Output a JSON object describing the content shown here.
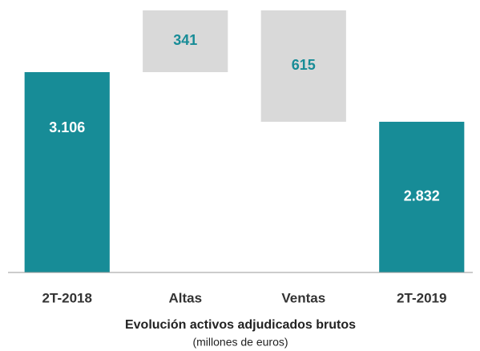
{
  "chart_data": {
    "type": "waterfall",
    "title": "Evolución  activos adjudicados brutos",
    "subtitle": "(millones de euros)",
    "categories": [
      "2T-2018",
      "Altas",
      "Ventas",
      "2T-2019"
    ],
    "measures": [
      "total",
      "increase",
      "decrease",
      "total"
    ],
    "values": [
      3106,
      341,
      615,
      2832
    ],
    "value_labels": [
      "3.106",
      "341",
      "615",
      "2.832"
    ],
    "total_color": "#178c97",
    "change_color": "#d9d9d9",
    "ylim": [
      2000,
      3460
    ]
  }
}
